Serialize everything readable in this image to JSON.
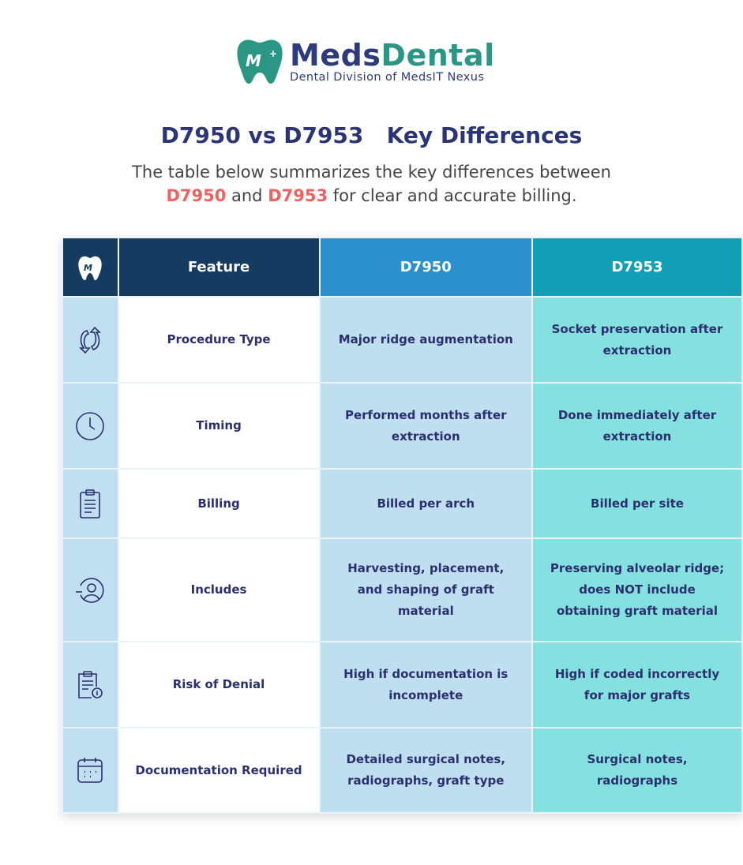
{
  "logo": {
    "brand_part1": "Meds",
    "brand_part2": "Dental",
    "tagline": "Dental Division of MedsIT Nexus"
  },
  "title": "D7950 vs D7953   Key Differences",
  "subtitle": {
    "line1": "The table below summarizes the key differences between",
    "code1": "D7950",
    "and": " and ",
    "code2": "D7953",
    "rest": " for clear and accurate billing."
  },
  "colors": {
    "header_navy": "#153b60",
    "d7950_header": "#2b90cb",
    "d7953_header": "#129fb6",
    "d7950_cell": "#bfdff0",
    "d7953_cell": "#84e1e0",
    "accent_red": "#f0625f"
  },
  "table": {
    "headers": [
      "Feature",
      "D7950",
      "D7953"
    ],
    "rows": [
      {
        "icon": "refresh-arrows-icon",
        "feature": "Procedure Type",
        "d7950": "Major ridge augmentation",
        "d7953": "Socket preservation after extraction"
      },
      {
        "icon": "clock-icon",
        "feature": "Timing",
        "d7950": "Performed months after extraction",
        "d7953": "Done immediately after extraction"
      },
      {
        "icon": "clipboard-icon",
        "feature": "Billing",
        "d7950": "Billed per arch",
        "d7953": "Billed per site"
      },
      {
        "icon": "user-icon",
        "feature": "Includes",
        "d7950": "Harvesting, placement, and shaping of graft material",
        "d7953": "Preserving alveolar ridge; does NOT include obtaining graft material"
      },
      {
        "icon": "clipboard-info-icon",
        "feature": "Risk of Denial",
        "d7950": "High if documentation is incomplete",
        "d7953": "High if coded incorrectly for major grafts"
      },
      {
        "icon": "calendar-icon",
        "feature": "Documentation Required",
        "d7950": "Detailed surgical notes, radiographs, graft type",
        "d7953": "Surgical notes, radiographs"
      }
    ]
  }
}
